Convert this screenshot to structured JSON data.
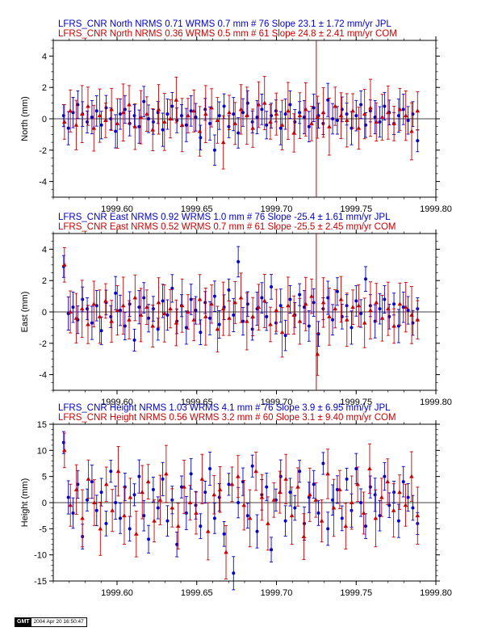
{
  "colors": {
    "blue": "#0000cc",
    "red": "#cc0000",
    "axis": "#000000"
  },
  "footer": {
    "logo": "GMT",
    "timestamp": "2004 Apr 20 16:50:47"
  },
  "chart_data": [
    {
      "type": "scatter",
      "id": "north",
      "title_lines": [
        {
          "text": "LFRS_CNR North NRMS 0.71 WRMS  0.7 mm # 76 Slope   23.1 ±  1.72 mm/yr JPL",
          "color": "blue"
        },
        {
          "text": "LFRS_CNR North NRMS 0.36 WRMS  0.5 mm # 61 Slope   24.8 ±  2.41 mm/yr COM",
          "color": "red"
        }
      ],
      "ylabel": "North (mm)",
      "xlim": [
        1999.56,
        1999.8
      ],
      "ylim": [
        -5,
        5
      ],
      "yticks": [
        -4,
        -2,
        0,
        2,
        4
      ],
      "xticks": [
        "1999.60",
        "1999.65",
        "1999.70",
        "1999.75",
        "1999.80"
      ],
      "vline": 1999.725,
      "series": [
        {
          "color": "blue",
          "marker": "circle",
          "values": [
            0.2,
            -0.6,
            0.4,
            0.9,
            0.3,
            -0.2,
            0.1,
            0.5,
            -0.4,
            0.7,
            0.0,
            -0.8,
            0.3,
            0.6,
            -0.3,
            0.2,
            -0.5,
            1.1,
            0.0,
            -0.2,
            0.4,
            -0.7,
            0.3,
            0.8,
            -0.1,
            0.2,
            -0.4,
            0.5,
            0.1,
            -1.2,
            0.6,
            -0.3,
            -2.0,
            0.2,
            0.8,
            -0.5,
            0.3,
            -0.9,
            0.4,
            1.0,
            -0.2,
            0.1,
            0.6,
            -0.4,
            0.2,
            0.5,
            -0.6,
            0.3,
            0.9,
            -0.2,
            0.4,
            0.1,
            -0.5,
            0.7,
            0.2,
            -0.3,
            1.2,
            0.0,
            -0.1,
            0.6,
            0.3,
            -0.6,
            0.2,
            0.9,
            -0.4,
            0.5,
            0.1,
            -0.2,
            0.8,
            0.4,
            -0.3,
            0.2,
            0.6,
            -0.1,
            0.3,
            -1.4
          ]
        },
        {
          "color": "red",
          "marker": "triangle",
          "values": [
            -0.2,
            0.5,
            -0.4,
            0.3,
            0.8,
            -0.6,
            0.2,
            -0.1,
            0.6,
            -0.3,
            0.4,
            0.9,
            -0.5,
            0.1,
            0.3,
            -0.7,
            0.6,
            -0.2,
            0.0,
            1.2,
            -0.4,
            0.2,
            0.5,
            -0.8,
            0.3,
            0.7,
            -0.1,
            -1.5,
            0.4,
            -0.3,
            0.6,
            0.2,
            -0.6,
            0.9,
            1.0,
            -0.2,
            0.3,
            -0.4,
            0.5,
            -0.9,
            0.2,
            0.6,
            -0.3,
            0.1,
            0.4,
            -0.5,
            0.8,
            0.2,
            -0.1,
            0.5,
            -0.6,
            0.3,
            0.7,
            -0.2,
            0.1,
            0.4,
            -0.3,
            0.6,
            0.2,
            -0.8,
            0.5
          ]
        }
      ]
    },
    {
      "type": "scatter",
      "id": "east",
      "title_lines": [
        {
          "text": "LFRS_CNR East NRMS 0.92 WRMS  1.0 mm # 76 Slope  -25.4 ±  1.61 mm/yr JPL",
          "color": "blue"
        },
        {
          "text": "LFRS_CNR East NRMS 0.52 WRMS  0.7 mm # 61 Slope  -25.5 ±  2.45 mm/yr COM",
          "color": "red"
        }
      ],
      "ylabel": "East (mm)",
      "xlim": [
        1999.56,
        1999.8
      ],
      "ylim": [
        -5,
        5
      ],
      "yticks": [
        -4,
        -2,
        0,
        2,
        4
      ],
      "xticks": [
        "1999.60",
        "1999.65",
        "1999.70",
        "1999.75",
        "1999.80"
      ],
      "vline": 1999.725,
      "series": [
        {
          "color": "blue",
          "marker": "circle",
          "values": [
            2.9,
            -0.1,
            0.3,
            -0.5,
            0.8,
            0.2,
            -0.7,
            0.4,
            -1.2,
            0.6,
            -0.3,
            1.2,
            0.1,
            -0.9,
            0.5,
            -1.8,
            0.3,
            0.9,
            -0.4,
            0.2,
            -1.1,
            0.7,
            -0.2,
            1.5,
            -0.6,
            0.4,
            -1.0,
            0.8,
            0.1,
            -1.3,
            0.6,
            -0.4,
            1.0,
            -0.8,
            0.3,
            1.4,
            -0.2,
            3.2,
            -0.6,
            0.5,
            -1.1,
            0.2,
            0.9,
            -0.3,
            1.6,
            -0.7,
            0.4,
            -1.5,
            0.8,
            -0.2,
            1.1,
            0.3,
            -0.9,
            0.6,
            -1.4,
            0.2,
            0.9,
            -0.5,
            1.3,
            -0.3,
            0.4,
            -1.0,
            0.7,
            -0.1,
            2.1,
            0.4,
            -0.6,
            0.2,
            0.8,
            -0.3,
            0.5,
            -0.9,
            0.3,
            0.1,
            -0.7,
            0.2
          ]
        },
        {
          "color": "red",
          "marker": "triangle",
          "values": [
            3.0,
            0.0,
            -0.4,
            0.2,
            -0.8,
            0.5,
            -0.3,
            0.7,
            -0.6,
            0.1,
            0.4,
            -0.5,
            0.9,
            -0.2,
            0.3,
            -0.9,
            0.6,
            -0.1,
            0.2,
            -0.7,
            0.4,
            0.0,
            -0.5,
            0.8,
            -0.3,
            0.5,
            -1.1,
            0.2,
            -0.4,
            0.6,
            0.9,
            -0.6,
            -0.3,
            0.3,
            0.7,
            -0.8,
            0.1,
            -1.3,
            0.4,
            -0.2,
            -0.6,
            0.5,
            1.0,
            -2.7,
            0.6,
            -0.3,
            0.2,
            0.8,
            -0.5,
            0.3,
            0.4,
            -0.7,
            0.1,
            0.6,
            -0.4,
            0.2,
            -0.9,
            0.5,
            0.3,
            -0.2,
            -0.5
          ]
        }
      ]
    },
    {
      "type": "scatter",
      "id": "height",
      "title_lines": [
        {
          "text": "LFRS_CNR Height NRMS 1.03 WRMS  4.1 mm # 76 Slope    3.9 ±  6.95 mm/yr JPL",
          "color": "blue"
        },
        {
          "text": "LFRS_CNR Height NRMS 0.56 WRMS  3.2 mm # 60 Slope    3.1 ±  9.40 mm/yr COM",
          "color": "red"
        }
      ],
      "ylabel": "Height (mm)",
      "xlim": [
        1999.56,
        1999.8
      ],
      "ylim": [
        -15,
        15
      ],
      "yticks": [
        -15,
        -10,
        -5,
        0,
        5,
        10,
        15
      ],
      "xticks": [
        "1999.60",
        "1999.65",
        "1999.70",
        "1999.75",
        "1999.80"
      ],
      "vline": null,
      "series": [
        {
          "color": "blue",
          "marker": "circle",
          "values": [
            11.5,
            1.0,
            -2.0,
            3.5,
            -6.5,
            0.5,
            4.0,
            -1.5,
            2.0,
            -4.0,
            6.0,
            0.0,
            -3.0,
            3.0,
            -5.0,
            1.5,
            5.0,
            -2.5,
            -7.0,
            2.5,
            -1.0,
            4.5,
            -3.5,
            0.5,
            -8.0,
            3.0,
            -2.0,
            5.5,
            -0.5,
            -4.5,
            2.0,
            6.5,
            -3.0,
            1.0,
            -6.0,
            3.5,
            -13.5,
            0.0,
            4.0,
            -2.5,
            7.0,
            -5.5,
            1.5,
            3.0,
            -9.0,
            0.5,
            5.0,
            -3.5,
            2.0,
            -1.0,
            6.0,
            -4.0,
            1.0,
            3.5,
            -2.0,
            7.5,
            -5.0,
            0.5,
            2.5,
            -3.0,
            4.5,
            -1.5,
            6.5,
            0.0,
            -4.5,
            3.0,
            1.5,
            -2.5,
            5.0,
            -0.5,
            2.0,
            -3.5,
            4.0,
            1.0,
            -1.0,
            -4.0
          ]
        },
        {
          "color": "red",
          "marker": "triangle",
          "values": [
            10.0,
            -0.5,
            2.5,
            -3.0,
            4.5,
            0.0,
            -5.0,
            3.5,
            -1.5,
            6.0,
            -2.5,
            1.0,
            -6.0,
            2.0,
            4.0,
            -3.5,
            0.5,
            5.5,
            -1.0,
            -4.5,
            3.0,
            0.0,
            -2.0,
            4.5,
            -5.5,
            1.5,
            2.5,
            -9.5,
            3.5,
            5.0,
            -0.5,
            -3.0,
            6.0,
            1.0,
            -4.0,
            0.5,
            2.0,
            4.5,
            -2.5,
            3.0,
            -6.5,
            1.5,
            0.5,
            -3.5,
            5.5,
            -1.0,
            2.5,
            -4.5,
            0.0,
            3.5,
            -2.0,
            6.5,
            -3.0,
            1.0,
            4.0,
            -1.5,
            2.0,
            -0.5,
            5.0,
            -2.5
          ]
        }
      ]
    }
  ]
}
